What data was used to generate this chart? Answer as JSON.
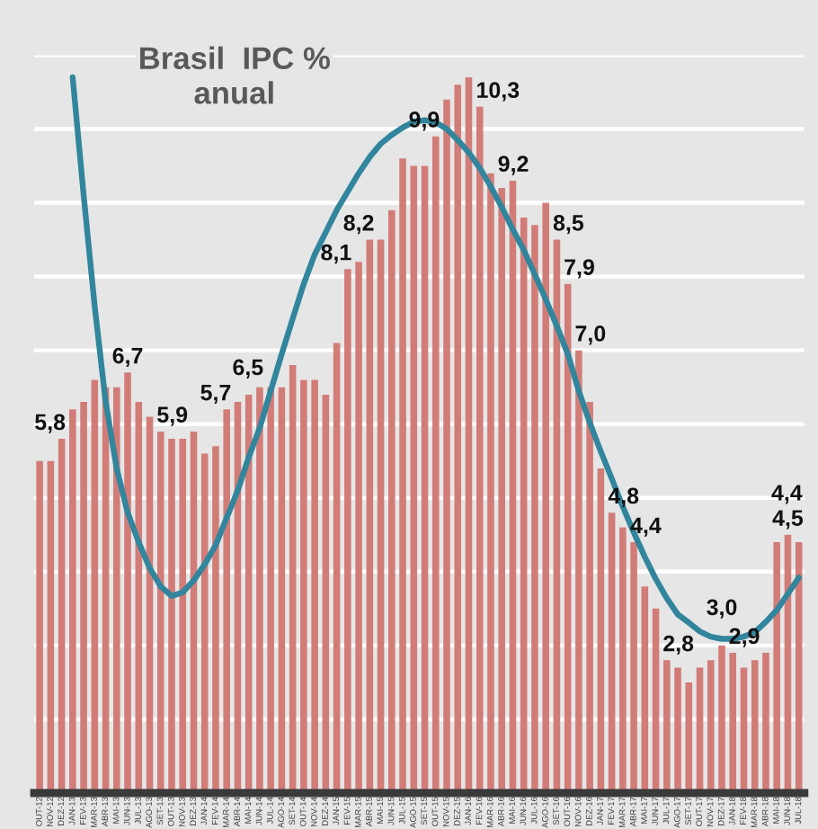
{
  "chart_data": {
    "type": "bar",
    "title": "Brasil  IPC %\nanual",
    "categories": [
      "OUT-12",
      "NOV-12",
      "DEZ-12",
      "JAN-13",
      "FEV-13",
      "MAR-13",
      "ABR-13",
      "MAI-13",
      "JUN-13",
      "JUL-13",
      "AGO-13",
      "SET-13",
      "OUT-13",
      "NOV-13",
      "DEZ-13",
      "JAN-14",
      "FEV-14",
      "MAR-14",
      "ABR-14",
      "MAI-14",
      "JUN-14",
      "JUL-14",
      "AGO-14",
      "SET-14",
      "OUT-14",
      "NOV-14",
      "DEZ-14",
      "JAN-15",
      "FEV-15",
      "MAR-15",
      "ABR-15",
      "MAI-15",
      "JUN-15",
      "JUL-15",
      "AGO-15",
      "SET-15",
      "OUT-15",
      "NOV-15",
      "DEZ-15",
      "JAN-16",
      "FEV-16",
      "MAR-16",
      "ABR-16",
      "MAI-16",
      "JUN-16",
      "JUL-16",
      "AGO-16",
      "SET-16",
      "OUT-16",
      "NOV-16",
      "DEZ-16",
      "JAN-17",
      "FEV-17",
      "MAR-17",
      "ABR-17",
      "MAI-17",
      "JUN-17",
      "JUL-17",
      "AGO-17",
      "SET-17",
      "OUT-17",
      "NOV-17",
      "DEZ-17",
      "JAN-18",
      "FEV-18",
      "MAR-18",
      "ABR-18",
      "MAI-18",
      "JUN-18",
      "JUL-18"
    ],
    "series": [
      {
        "color": "#d27c78",
        "values": [
          5.5,
          5.5,
          5.8,
          6.2,
          6.3,
          6.6,
          6.5,
          6.5,
          6.7,
          6.3,
          6.1,
          5.9,
          5.8,
          5.8,
          5.9,
          5.6,
          5.7,
          6.2,
          6.3,
          6.4,
          6.5,
          6.5,
          6.5,
          6.8,
          6.6,
          6.6,
          6.4,
          7.1,
          8.1,
          8.2,
          8.5,
          8.5,
          8.9,
          9.6,
          9.5,
          9.5,
          9.9,
          10.4,
          10.6,
          10.7,
          10.3,
          9.4,
          9.2,
          9.3,
          8.8,
          8.7,
          9.0,
          8.5,
          7.9,
          7.0,
          6.3,
          5.4,
          4.8,
          4.6,
          4.4,
          3.8,
          3.5,
          2.8,
          2.7,
          2.5,
          2.7,
          2.8,
          3.0,
          2.9,
          2.7,
          2.8,
          2.9,
          4.4,
          4.5,
          4.4
        ],
        "value_labels": [
          null,
          null,
          "5,8",
          null,
          null,
          null,
          null,
          null,
          "6,7",
          null,
          null,
          "5,9",
          null,
          null,
          null,
          null,
          "5,7",
          null,
          null,
          null,
          "6,5",
          null,
          null,
          null,
          null,
          null,
          null,
          null,
          "8,1",
          "8,2",
          null,
          null,
          null,
          null,
          null,
          null,
          "9,9",
          null,
          null,
          null,
          "10,3",
          null,
          "9,2",
          null,
          null,
          null,
          null,
          "8,5",
          "7,9",
          "7,0",
          null,
          null,
          "4,8",
          null,
          "4,4",
          null,
          null,
          "2,8",
          null,
          null,
          null,
          null,
          "3,0",
          "2,9",
          null,
          null,
          null,
          null,
          "4,5",
          "4,4"
        ]
      },
      {
        "type": "line",
        "color": "#31859c",
        "values": [
          null,
          null,
          null,
          10.7,
          9.1,
          7.6,
          6.3,
          5.4,
          4.8,
          4.4,
          4.05,
          3.8,
          3.67,
          3.72,
          3.88,
          4.1,
          4.36,
          4.73,
          5.1,
          5.55,
          5.95,
          6.45,
          6.95,
          7.43,
          7.9,
          8.3,
          8.6,
          8.9,
          9.15,
          9.4,
          9.62,
          9.8,
          9.92,
          10.02,
          10.1,
          10.12,
          10.09,
          10.0,
          9.85,
          9.68,
          9.47,
          9.22,
          8.94,
          8.64,
          8.36,
          8.03,
          7.69,
          7.33,
          6.95,
          6.45,
          6.02,
          5.63,
          5.26,
          4.88,
          4.53,
          4.2,
          3.9,
          3.64,
          3.42,
          3.31,
          3.19,
          3.12,
          3.09,
          3.09,
          3.12,
          3.18,
          3.32,
          3.48,
          3.7,
          3.92
        ]
      }
    ],
    "ylim": [
      1,
      11
    ],
    "yticks": [
      {
        "value": 1,
        "label": null
      },
      {
        "value": 2,
        "label": null
      },
      {
        "value": 3,
        "label": null
      },
      {
        "value": 4,
        "label": null
      },
      {
        "value": 5,
        "label": null
      },
      {
        "value": 6,
        "label": null
      },
      {
        "value": 7,
        "label": null
      },
      {
        "value": 8,
        "label": null
      },
      {
        "value": 9,
        "label": null
      },
      {
        "value": 10,
        "label": null
      },
      {
        "value": 11,
        "label": null
      }
    ],
    "grid": "y",
    "tick_labels": "x"
  }
}
